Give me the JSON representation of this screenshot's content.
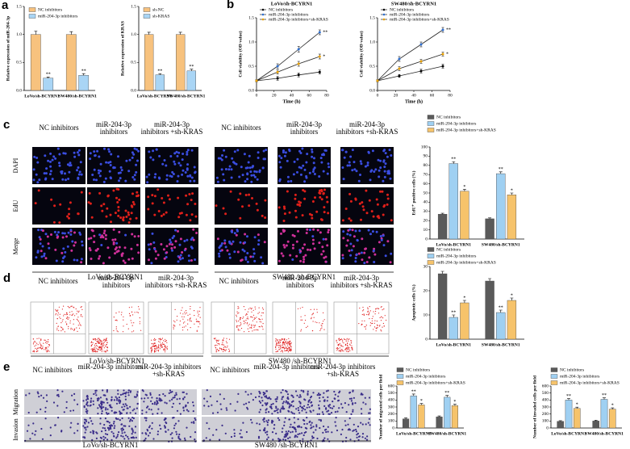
{
  "panel_letters": [
    "a",
    "b",
    "c",
    "d",
    "e"
  ],
  "panel_c": {
    "columns": [
      "NC inhibitors",
      "miR-204-3p inhibitors",
      "miR-204-3p inhibitors +sh-KRAS",
      "NC inhibitors",
      "miR-204-3p inhibitors",
      "miR-204-3p inhibitors +sh-KRAS"
    ],
    "rows": [
      "DAPI",
      "EdU",
      "Merge"
    ],
    "groups": [
      "LoVo/sh-BCYRN1",
      "SW480 /sh-BCYRN1"
    ]
  },
  "panel_d": {
    "columns": [
      "NC inhibitors",
      "miR-204-3p inhibitors",
      "miR-204-3p inhibitors +sh-KRAS",
      "NC inhibitors",
      "miR-204-3p inhibitors",
      "miR-204-3p inhibitors +sh-KRAS"
    ],
    "groups": [
      "LoVo/sh-BCYRN1",
      "SW480 /sh-BCYRN1"
    ]
  },
  "panel_e": {
    "columns": [
      "NC inhibitors",
      "miR-204-3p inhibitors",
      "miR-204-3p inhibitors +sh-KRAS",
      "NC inhibitors",
      "miR-204-3p inhibitors",
      "miR-204-3p inhibitors +sh-KRAS"
    ],
    "rows": [
      "Migration",
      "Invasion"
    ],
    "groups": [
      "LoVo/sh-BCYRN1",
      "SW480 /sh-BCYRN1"
    ]
  },
  "chart_data": [
    {
      "type": "bar",
      "y_label": "Relative expression of miR-204-3p",
      "categories": [
        "LoVo/sh-BCYRN1",
        "SW480/sh-BCYRN1"
      ],
      "series": [
        {
          "name": "NC inhibitors",
          "color": "#f7c27e",
          "values": [
            1.0,
            1.0
          ],
          "errors": [
            0.06,
            0.05
          ]
        },
        {
          "name": "miR-204-3p inhibitors",
          "color": "#a9d5f5",
          "values": [
            0.22,
            0.27
          ],
          "errors": [
            0.02,
            0.03
          ],
          "significance": [
            "**",
            "**"
          ]
        }
      ],
      "ylim": [
        0,
        1.5
      ],
      "yticks": [
        {
          "value": 0,
          "label": "0.0"
        },
        {
          "value": 0.5,
          "label": "0.5"
        },
        {
          "value": 1,
          "label": "1.0"
        },
        {
          "value": 1.5,
          "label": "1.5"
        }
      ]
    },
    {
      "type": "bar",
      "y_label": "Relative expression of KRAS",
      "categories": [
        "LoVo/sh-BCYRN1",
        "SW480/sh-BCYRN1"
      ],
      "series": [
        {
          "name": "sh-NC",
          "color": "#f7c27e",
          "values": [
            1.0,
            1.0
          ],
          "errors": [
            0.04,
            0.04
          ]
        },
        {
          "name": "sh-KRAS",
          "color": "#a9d5f5",
          "values": [
            0.28,
            0.35
          ],
          "errors": [
            0.02,
            0.03
          ],
          "significance": [
            "**",
            "**"
          ]
        }
      ],
      "ylim": [
        0,
        1.5
      ],
      "yticks": [
        {
          "value": 0,
          "label": "0.0"
        },
        {
          "value": 0.5,
          "label": "0.5"
        },
        {
          "value": 1,
          "label": "1.0"
        },
        {
          "value": 1.5,
          "label": "1.5"
        }
      ]
    },
    {
      "type": "line",
      "title": "LoVo/sh-BCYRN1",
      "y_label": "Cell viability (OD value)",
      "x_label": "Time (h)",
      "x": [
        0,
        24,
        48,
        72
      ],
      "series": [
        {
          "name": "NC inhibitors",
          "color": "#000000",
          "values": [
            0.2,
            0.25,
            0.32,
            0.38
          ],
          "errors": [
            0.02,
            0.04,
            0.04,
            0.04
          ]
        },
        {
          "name": "miR-204-3p inhibitors",
          "color": "#2f6fd0",
          "values": [
            0.2,
            0.5,
            0.85,
            1.2
          ],
          "errors": [
            0.02,
            0.05,
            0.06,
            0.05
          ],
          "significance": [
            null,
            null,
            null,
            "**"
          ]
        },
        {
          "name": "miR-204-3p inhibitors+sh-KRAS",
          "color": "#e8a000",
          "values": [
            0.2,
            0.38,
            0.55,
            0.7
          ],
          "errors": [
            0.02,
            0.04,
            0.05,
            0.05
          ],
          "significance": [
            null,
            null,
            null,
            "*"
          ]
        }
      ],
      "xlim": [
        0,
        80
      ],
      "xticks": [
        0,
        20,
        40,
        60,
        80
      ],
      "ylim": [
        0,
        1.5
      ],
      "yticks": [
        {
          "value": 0,
          "label": "0.0"
        },
        {
          "value": 0.5,
          "label": "0.5"
        },
        {
          "value": 1,
          "label": "1.0"
        },
        {
          "value": 1.5,
          "label": "1.5"
        }
      ]
    },
    {
      "type": "line",
      "title": "SW480/sh-BCYRN1",
      "y_label": "Cell viability (OD value)",
      "x_label": "Time (h)",
      "x": [
        0,
        24,
        48,
        72
      ],
      "series": [
        {
          "name": "NC inhibitors",
          "color": "#000000",
          "values": [
            0.2,
            0.3,
            0.4,
            0.5
          ],
          "errors": [
            0.02,
            0.03,
            0.04,
            0.04
          ]
        },
        {
          "name": "miR-204-3p inhibitors",
          "color": "#2f6fd0",
          "values": [
            0.2,
            0.65,
            0.95,
            1.25
          ],
          "errors": [
            0.02,
            0.05,
            0.05,
            0.05
          ],
          "significance": [
            null,
            null,
            null,
            "**"
          ]
        },
        {
          "name": "miR-204-3p inhibitors+sh-KRAS",
          "color": "#e8a000",
          "values": [
            0.2,
            0.45,
            0.6,
            0.75
          ],
          "errors": [
            0.02,
            0.04,
            0.04,
            0.04
          ],
          "significance": [
            null,
            null,
            null,
            "*"
          ]
        }
      ],
      "xlim": [
        0,
        80
      ],
      "xticks": [
        0,
        20,
        40,
        60,
        80
      ],
      "ylim": [
        0,
        1.5
      ],
      "yticks": [
        {
          "value": 0,
          "label": "0.0"
        },
        {
          "value": 0.5,
          "label": "0.5"
        },
        {
          "value": 1,
          "label": "1.0"
        },
        {
          "value": 1.5,
          "label": "1.5"
        }
      ]
    },
    {
      "type": "bar",
      "y_label": "EdU⁺ positive cells (%)",
      "categories": [
        "LoVo/sh-BCYRN1",
        "SW480/sh-BCYRN1"
      ],
      "series": [
        {
          "name": "NC inhibitors",
          "color": "#5a5a5a",
          "values": [
            27,
            22
          ],
          "errors": [
            1,
            1
          ]
        },
        {
          "name": "miR-204-3p inhibitors",
          "color": "#9fd0f2",
          "values": [
            82,
            71
          ],
          "errors": [
            2,
            2
          ],
          "significance": [
            "**",
            "**"
          ]
        },
        {
          "name": "miR-204-3p inhibitors+sh-KRAS",
          "color": "#f6c36b",
          "values": [
            52,
            48
          ],
          "errors": [
            2,
            2
          ],
          "significance": [
            "*",
            "*"
          ]
        }
      ],
      "ylim": [
        0,
        100
      ],
      "yticks": [
        0,
        10,
        20,
        30,
        40,
        50,
        60,
        70,
        80,
        90,
        100
      ]
    },
    {
      "type": "bar",
      "y_label": "Apoptotic cells (%)",
      "categories": [
        "LoVo/sh-BCYRN1",
        "SW480/sh-BCYRN1"
      ],
      "series": [
        {
          "name": "NC inhibitors",
          "color": "#5a5a5a",
          "values": [
            27,
            24
          ],
          "errors": [
            1,
            1
          ]
        },
        {
          "name": "miR-204-3p inhibitors",
          "color": "#9fd0f2",
          "values": [
            9,
            11
          ],
          "errors": [
            1,
            1
          ],
          "significance": [
            "**",
            "**"
          ]
        },
        {
          "name": "miR-204-3p inhibitors+sh-KRAS",
          "color": "#f6c36b",
          "values": [
            15,
            16
          ],
          "errors": [
            1,
            1
          ],
          "significance": [
            "*",
            "*"
          ]
        }
      ],
      "ylim": [
        0,
        30
      ],
      "yticks": [
        0,
        10,
        20,
        30
      ]
    },
    {
      "type": "bar",
      "y_label": "Number of migrated cells per field",
      "categories": [
        "LoVo/sh-BCYRN1",
        "SW480/sh-BCYRN1"
      ],
      "series": [
        {
          "name": "NC inhibitors",
          "color": "#5a5a5a",
          "values": [
            130,
            160
          ],
          "errors": [
            15,
            12
          ]
        },
        {
          "name": "miR-204-3p inhibitors",
          "color": "#9fd0f2",
          "values": [
            460,
            440
          ],
          "errors": [
            25,
            25
          ],
          "significance": [
            "**",
            "**"
          ]
        },
        {
          "name": "miR-204-3p inhibitors+sh-KRAS",
          "color": "#f6c36b",
          "values": [
            330,
            320
          ],
          "errors": [
            20,
            20
          ],
          "significance": [
            "*",
            "*"
          ]
        }
      ],
      "ylim": [
        0,
        600
      ],
      "yticks": [
        0,
        100,
        200,
        300,
        400,
        500,
        600
      ]
    },
    {
      "type": "bar",
      "y_label": "Number of invaded cells per field",
      "categories": [
        "LoVo/sh-BCYRN1",
        "SW480/sh-BCYRN1"
      ],
      "series": [
        {
          "name": "NC inhibitors",
          "color": "#5a5a5a",
          "values": [
            95,
            100
          ],
          "errors": [
            10,
            12
          ]
        },
        {
          "name": "miR-204-3p inhibitors",
          "color": "#9fd0f2",
          "values": [
            400,
            410
          ],
          "errors": [
            20,
            20
          ],
          "significance": [
            "**",
            "**"
          ]
        },
        {
          "name": "miR-204-3p inhibitors+sh-KRAS",
          "color": "#f6c36b",
          "values": [
            280,
            270
          ],
          "errors": [
            18,
            18
          ],
          "significance": [
            "*",
            "*"
          ]
        }
      ],
      "ylim": [
        0,
        600
      ],
      "yticks": [
        0,
        100,
        200,
        300,
        400,
        500,
        600
      ]
    }
  ]
}
